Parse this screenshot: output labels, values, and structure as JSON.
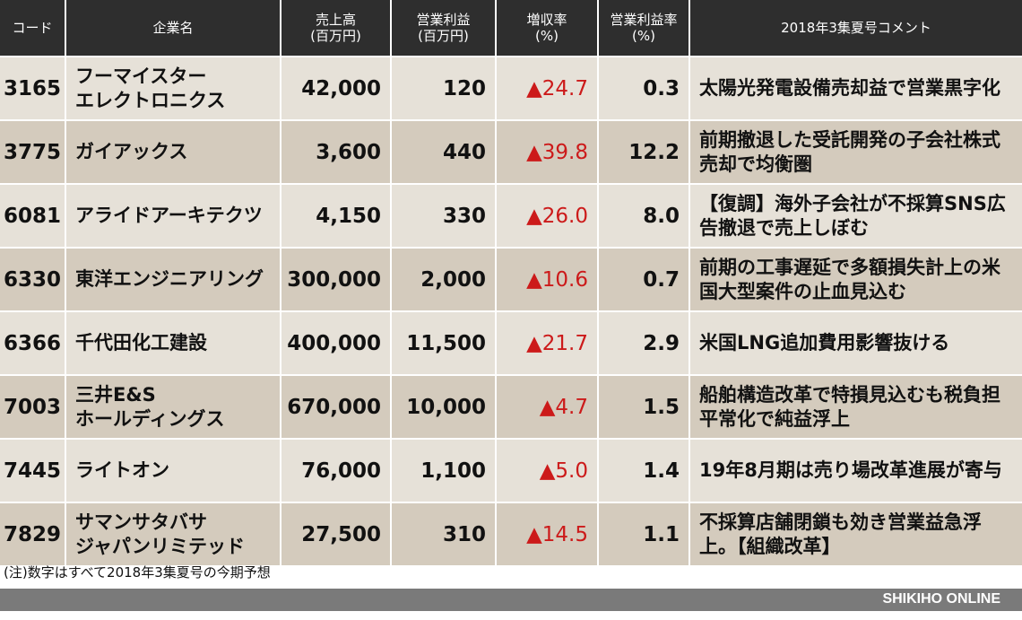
{
  "headers": {
    "code": "コード",
    "company": "企業名",
    "sales": "売上高\n(百万円)",
    "op_profit": "営業利益\n(百万円)",
    "growth": "増収率\n(%)",
    "margin": "営業利益率\n(%)",
    "comment": "2018年3集夏号コメント"
  },
  "rows": [
    {
      "code": "3165",
      "name": "フーマイスター\nエレクトロニクス",
      "sales": "42,000",
      "op_profit": "120",
      "growth": "▲24.7",
      "margin": "0.3",
      "comment": "太陽光発電設備売却益で営業黒字化"
    },
    {
      "code": "3775",
      "name": "ガイアックス",
      "sales": "3,600",
      "op_profit": "440",
      "growth": "▲39.8",
      "margin": "12.2",
      "comment": "前期撤退した受託開発の子会社株式売却で均衡圏"
    },
    {
      "code": "6081",
      "name": "アライドアーキテクツ",
      "sales": "4,150",
      "op_profit": "330",
      "growth": "▲26.0",
      "margin": "8.0",
      "comment": "【復調】海外子会社が不採算SNS広告撤退で売上しぼむ"
    },
    {
      "code": "6330",
      "name": "東洋エンジニアリング",
      "sales": "300,000",
      "op_profit": "2,000",
      "growth": "▲10.6",
      "margin": "0.7",
      "comment": "前期の工事遅延で多額損失計上の米国大型案件の止血見込む"
    },
    {
      "code": "6366",
      "name": "千代田化工建設",
      "sales": "400,000",
      "op_profit": "11,500",
      "growth": "▲21.7",
      "margin": "2.9",
      "comment": "米国LNG追加費用影響抜ける"
    },
    {
      "code": "7003",
      "name": "三井E&S\nホールディングス",
      "sales": "670,000",
      "op_profit": "10,000",
      "growth": "▲4.7",
      "margin": "1.5",
      "comment": "船舶構造改革で特損見込むも税負担平常化で純益浮上"
    },
    {
      "code": "7445",
      "name": "ライトオン",
      "sales": "76,000",
      "op_profit": "1,100",
      "growth": "▲5.0",
      "margin": "1.4",
      "comment": "19年8月期は売り場改革進展が寄与"
    },
    {
      "code": "7829",
      "name": "サマンサタバサ\nジャパンリミテッド",
      "sales": "27,500",
      "op_profit": "310",
      "growth": "▲14.5",
      "margin": "1.1",
      "comment": "不採算店舗閉鎖も効き営業益急浮上。【組織改革】"
    }
  ],
  "note": "(注)数字はすべて2018年3集夏号の今期予想",
  "brand": "SHIKIHO ONLINE"
}
